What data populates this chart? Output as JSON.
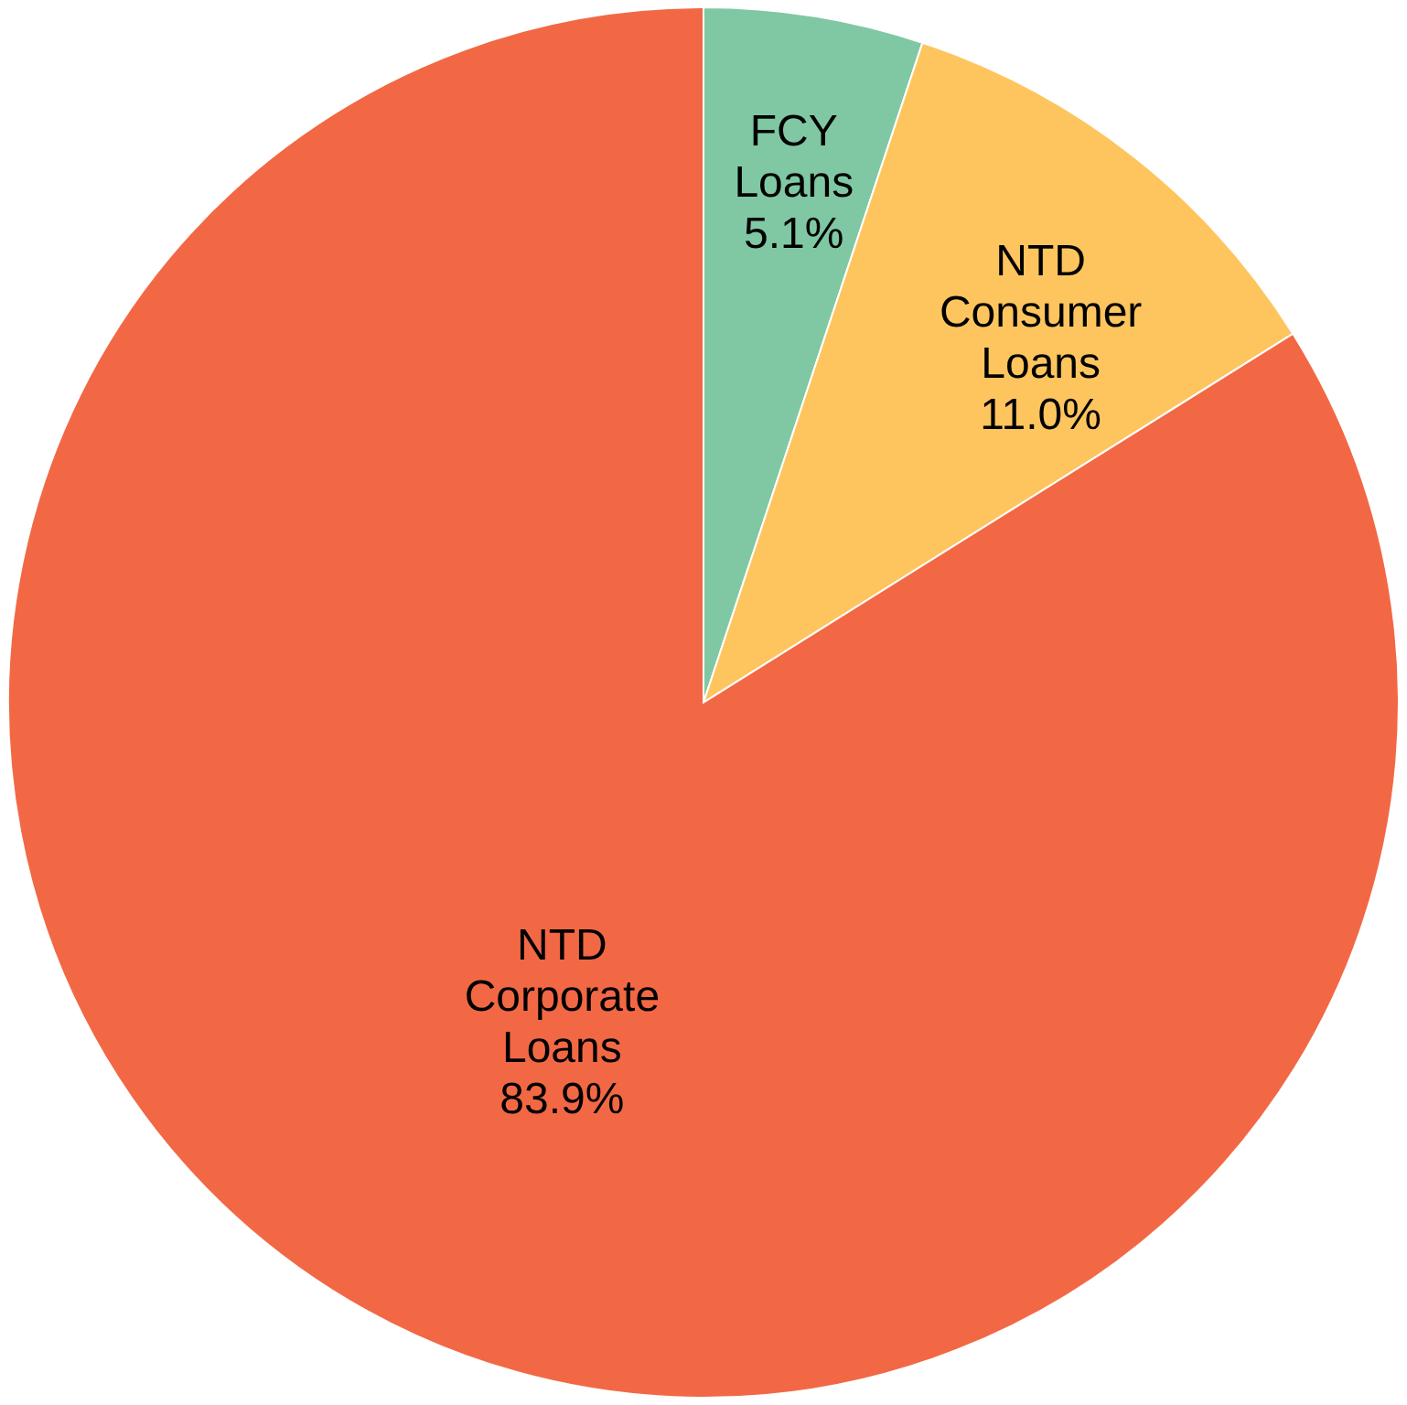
{
  "chart_data": {
    "type": "pie",
    "categories": [
      "FCY Loans",
      "NTD Consumer Loans",
      "NTD Corporate Loans"
    ],
    "values": [
      5.1,
      11.0,
      83.9
    ],
    "colors": [
      "#7fc8a3",
      "#fec55e",
      "#f26845"
    ],
    "value_labels": [
      "5.1%",
      "11.0%",
      "83.9%"
    ]
  }
}
